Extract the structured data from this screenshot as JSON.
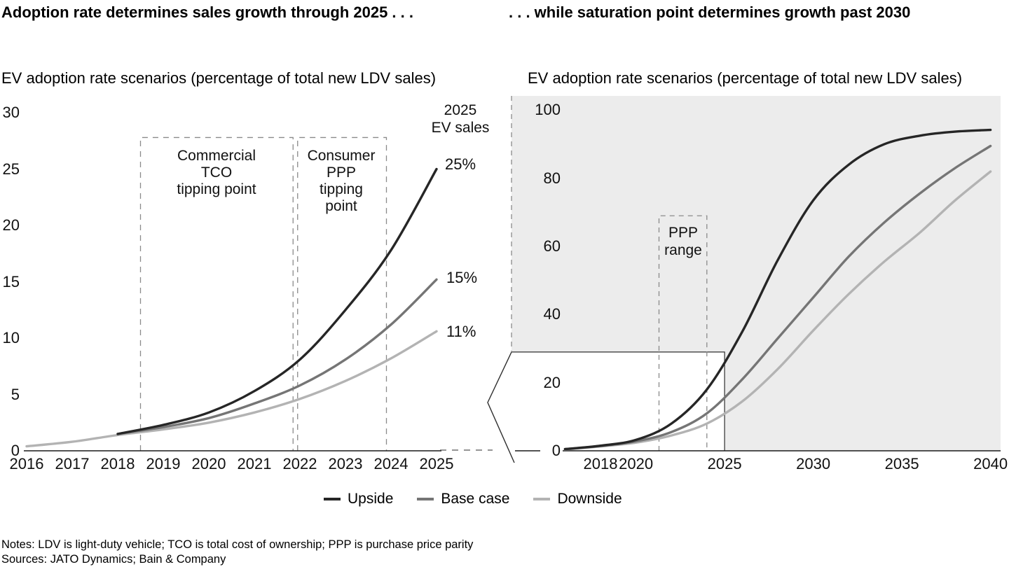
{
  "header": {
    "left_title": "Adoption rate determines sales growth through 2025 . . .",
    "right_title": ". . . while saturation point determines growth past 2030"
  },
  "chart_data": [
    {
      "id": "ev-adoption-2016-2025",
      "type": "line",
      "title": "EV adoption rate scenarios (percentage of total new LDV sales)",
      "xlabel": "",
      "ylabel": "",
      "xlim": [
        2016,
        2025
      ],
      "ylim": [
        0,
        30
      ],
      "grid": false,
      "x_ticks": [
        2016,
        2017,
        2018,
        2019,
        2020,
        2021,
        2022,
        2023,
        2024,
        2025
      ],
      "y_ticks": [
        30,
        25,
        20,
        15,
        10,
        5,
        0
      ],
      "series": [
        {
          "name": "Upside",
          "color": "#262626",
          "x": [
            2018,
            2019,
            2020,
            2021,
            2022,
            2023,
            2024,
            2025
          ],
          "values": [
            1.5,
            2.3,
            3.4,
            5.3,
            8.1,
            12.5,
            17.8,
            25
          ],
          "end_label": "25%"
        },
        {
          "name": "Base case",
          "color": "#757575",
          "x": [
            2018,
            2019,
            2020,
            2021,
            2022,
            2023,
            2024,
            2025
          ],
          "values": [
            1.5,
            2.1,
            2.9,
            4.2,
            5.8,
            8.1,
            11.2,
            15.2
          ],
          "end_label": "15%"
        },
        {
          "name": "Downside",
          "color": "#b3b3b3",
          "x": [
            2016,
            2017,
            2018,
            2019,
            2020,
            2021,
            2022,
            2023,
            2024,
            2025
          ],
          "values": [
            0.4,
            0.8,
            1.4,
            1.9,
            2.5,
            3.4,
            4.6,
            6.2,
            8.2,
            10.6
          ],
          "end_label": "11%"
        }
      ],
      "annotations": {
        "tco_box": {
          "text": "Commercial\nTCO\ntipping point",
          "x_from": 2018.5,
          "x_to": 2021.85,
          "y_top": 27.8
        },
        "ppp_box": {
          "text": "Consumer\nPPP\ntipping\npoint",
          "x_from": 2021.95,
          "x_to": 2023.9,
          "y_top": 27.8
        },
        "sales_header": {
          "text": "2025\nEV sales"
        }
      }
    },
    {
      "id": "ev-adoption-2016-2040",
      "type": "line",
      "title": "EV adoption rate scenarios (percentage of total new LDV sales)",
      "xlabel": "",
      "ylabel": "",
      "xlim": [
        2016,
        2040
      ],
      "ylim": [
        0,
        100
      ],
      "grid": false,
      "x_ticks": [
        2018,
        2020,
        2025,
        2030,
        2035,
        2040
      ],
      "y_ticks": [
        100,
        80,
        60,
        40,
        20,
        0
      ],
      "series": [
        {
          "name": "Upside",
          "color": "#262626",
          "x": [
            2016,
            2018,
            2020,
            2022,
            2024,
            2026,
            2028,
            2030,
            2032,
            2034,
            2036,
            2038,
            2040
          ],
          "values": [
            0.5,
            1.5,
            3.2,
            8,
            18,
            35,
            56,
            73.5,
            84,
            90,
            92.5,
            93.7,
            94.2
          ]
        },
        {
          "name": "Base case",
          "color": "#757575",
          "x": [
            2016,
            2018,
            2020,
            2022,
            2024,
            2026,
            2028,
            2030,
            2032,
            2034,
            2036,
            2038,
            2040
          ],
          "values": [
            0.5,
            1.4,
            2.8,
            5.5,
            11,
            21,
            33,
            45,
            57,
            67,
            75.5,
            83,
            89.5
          ]
        },
        {
          "name": "Downside",
          "color": "#b3b3b3",
          "x": [
            2016,
            2018,
            2020,
            2022,
            2024,
            2026,
            2028,
            2030,
            2032,
            2034,
            2036,
            2038,
            2040
          ],
          "values": [
            0.4,
            1.3,
            2.4,
            4.5,
            8,
            14.5,
            24,
            35.3,
            46,
            55.5,
            64,
            73.5,
            82
          ]
        }
      ],
      "annotations": {
        "ppp_range": {
          "text": "PPP\nrange",
          "x_from": 2021.3,
          "x_to": 2024,
          "y_top": 69
        },
        "zoom_region": {
          "x_to": 2025,
          "y_to": 29
        }
      }
    }
  ],
  "legend": {
    "items": [
      {
        "label": "Upside",
        "color": "#262626"
      },
      {
        "label": "Base case",
        "color": "#757575"
      },
      {
        "label": "Downside",
        "color": "#b3b3b3"
      }
    ]
  },
  "footer": {
    "notes": "Notes: LDV is light-duty vehicle; TCO is total cost of ownership; PPP is purchase price parity",
    "sources": "Sources: JATO Dynamics; Bain & Company"
  },
  "colors": {
    "saturation_area_fill": "#ececec",
    "dashed_guides": "#8a8a8a",
    "axis": "#1a1a1a"
  }
}
